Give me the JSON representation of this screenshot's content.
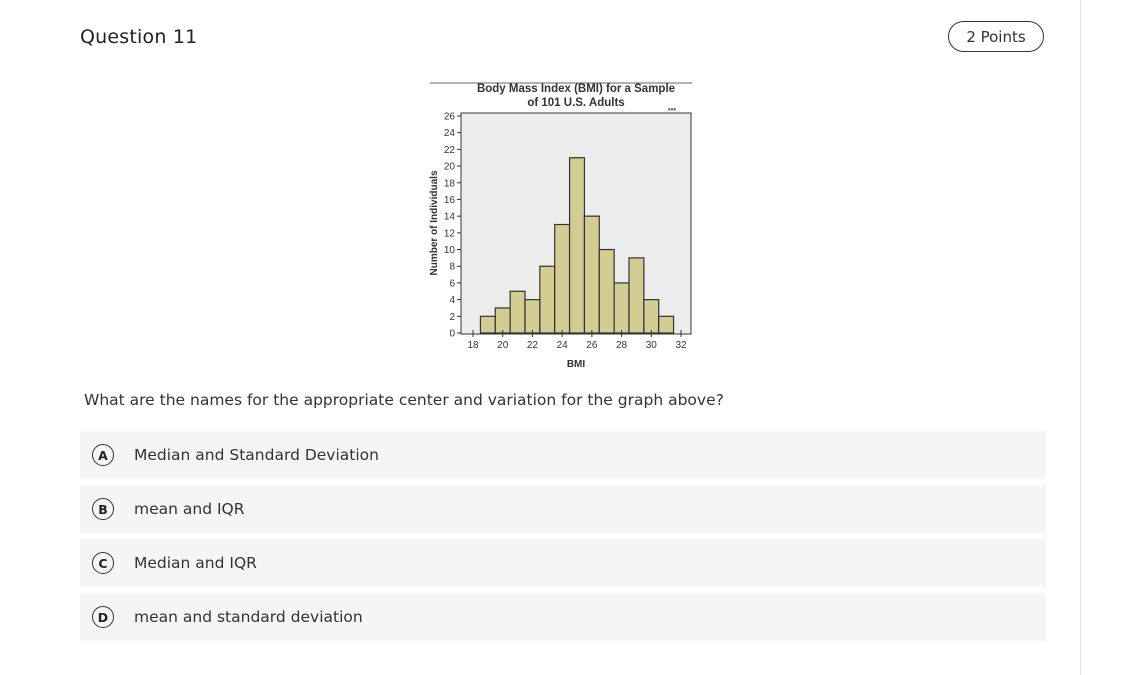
{
  "question": {
    "title": "Question 11",
    "points": "2 Points",
    "prompt": "What are the names for the appropriate center and variation for the graph above?"
  },
  "options": [
    {
      "letter": "A",
      "text": "Median and Standard Deviation"
    },
    {
      "letter": "B",
      "text": "mean and IQR"
    },
    {
      "letter": "C",
      "text": "Median and IQR"
    },
    {
      "letter": "D",
      "text": "mean and standard deviation"
    }
  ],
  "chart_data": {
    "type": "bar",
    "title": [
      "Body Mass Index (BMI) for a Sample",
      "of 101 U.S. Adults"
    ],
    "xlabel": "BMI",
    "ylabel": "Number of Individuals",
    "bin_edges": [
      19,
      20,
      21,
      22,
      23,
      24,
      25,
      26,
      27,
      28,
      29,
      30,
      31
    ],
    "values": [
      2,
      3,
      5,
      4,
      8,
      13,
      21,
      14,
      10,
      6,
      9,
      4,
      2
    ],
    "x_ticks": [
      "18",
      "20",
      "22",
      "24",
      "26",
      "28",
      "30",
      "32"
    ],
    "xlim": [
      18,
      32
    ],
    "y_ticks": [
      "0",
      "2",
      "4",
      "6",
      "8",
      "10",
      "12",
      "14",
      "16",
      "18",
      "20",
      "22",
      "24",
      "26"
    ],
    "ylim": [
      0,
      26
    ],
    "bar_color": "#d3cc93",
    "ellipsis": "•••",
    "grid": false
  }
}
